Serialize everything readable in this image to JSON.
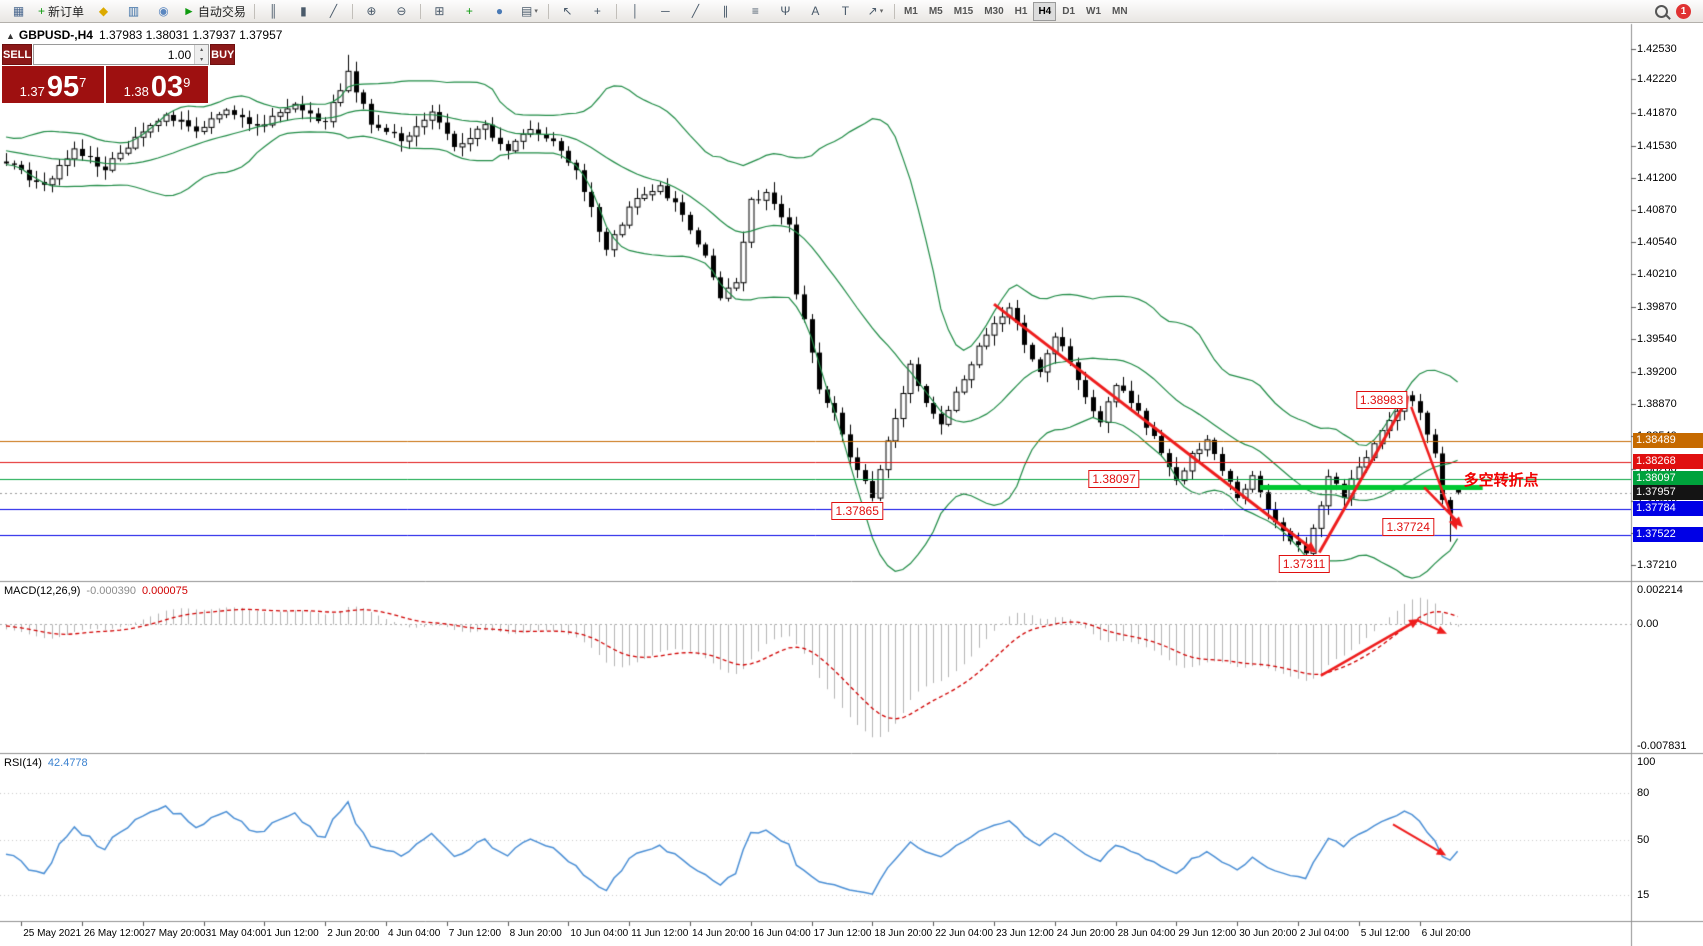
{
  "window": {
    "toggle_glyph": "▲",
    "symbol": "GBPUSD-,H4",
    "ohlc": "1.37983 1.38031 1.37937 1.37957"
  },
  "toolbar": {
    "badge": "1",
    "items": [
      {
        "name": "chart-window-icon",
        "glyph": "▦",
        "color": "#46648c"
      },
      {
        "name": "new-order-button",
        "glyph": "+",
        "color": "#0f9b0f",
        "label": "新订单"
      },
      {
        "name": "metaeditor-icon",
        "glyph": "◆",
        "color": "#dcaa00"
      },
      {
        "name": "market-watch-icon",
        "glyph": "▥",
        "color": "#3a6ea5"
      },
      {
        "name": "navigator-icon",
        "glyph": "◉",
        "color": "#5b87c0"
      },
      {
        "name": "autotrading-button",
        "glyph": "►",
        "color": "#0f9b0f",
        "label": "自动交易"
      },
      {
        "sep": true
      },
      {
        "name": "bar-chart-icon",
        "glyph": "║"
      },
      {
        "name": "candle-chart-icon",
        "glyph": "▮"
      },
      {
        "name": "line-chart-icon",
        "glyph": "╱"
      },
      {
        "sep": true
      },
      {
        "name": "zoom-in-icon",
        "glyph": "⊕"
      },
      {
        "name": "zoom-out-icon",
        "glyph": "⊖"
      },
      {
        "sep": true
      },
      {
        "name": "tile-windows-icon",
        "glyph": "⊞"
      },
      {
        "name": "indicators-icon",
        "glyph": "+",
        "color": "#0f9b0f"
      },
      {
        "name": "cycles-icon",
        "glyph": "●",
        "color": "#4a7ab5"
      },
      {
        "name": "templates-icon",
        "glyph": "▤",
        "dropdown": true
      },
      {
        "sep": true
      },
      {
        "name": "cursor-icon",
        "glyph": "↖"
      },
      {
        "name": "crosshair-icon",
        "glyph": "+"
      },
      {
        "sep": true
      },
      {
        "name": "vertical-line-icon",
        "glyph": "│"
      },
      {
        "name": "horizontal-line-icon",
        "glyph": "─"
      },
      {
        "name": "trendline-icon",
        "glyph": "╱"
      },
      {
        "name": "channel-icon",
        "glyph": "∥"
      },
      {
        "name": "fibonacci-icon",
        "glyph": "≡"
      },
      {
        "name": "pitchfork-icon",
        "glyph": "Ψ"
      },
      {
        "name": "text-icon",
        "glyph": "A"
      },
      {
        "name": "label-icon",
        "glyph": "T"
      },
      {
        "name": "arrows-icon",
        "glyph": "↗",
        "dropdown": true
      },
      {
        "sep": true
      }
    ],
    "timeframes": [
      "M1",
      "M5",
      "M15",
      "M30",
      "H1",
      "H4",
      "D1",
      "W1",
      "MN"
    ],
    "active_timeframe": "H4"
  },
  "trade_panel": {
    "sell_label": "SELL",
    "buy_label": "BUY",
    "volume": "1.00",
    "spin_up": "▴",
    "spin_down": "▾",
    "bid": {
      "prefix": "1.37",
      "big": "95",
      "sup": "7"
    },
    "ask": {
      "prefix": "1.38",
      "big": "03",
      "sup": "9"
    }
  },
  "chart_data": {
    "type": "candlestick",
    "symbol_timeframe": "GBPUSD H4",
    "noise_seed": 7,
    "price_axis": {
      "max": 1.4253,
      "min": 1.3721,
      "ticks": [
        "1.42530",
        "1.42220",
        "1.41870",
        "1.41530",
        "1.41200",
        "1.40870",
        "1.40540",
        "1.40210",
        "1.39870",
        "1.39540",
        "1.39200",
        "1.38870",
        "1.38540",
        "1.38200",
        "1.37870",
        "1.37540",
        "1.37210"
      ]
    },
    "time_labels": [
      "25 May 2021",
      "26 May 12:00",
      "27 May 20:00",
      "31 May 04:00",
      "1 Jun 12:00",
      "2 Jun 20:00",
      "4 Jun 04:00",
      "7 Jun 12:00",
      "8 Jun 20:00",
      "10 Jun 04:00",
      "11 Jun 12:00",
      "14 Jun 20:00",
      "16 Jun 04:00",
      "17 Jun 12:00",
      "18 Jun 20:00",
      "22 Jun 04:00",
      "23 Jun 12:00",
      "24 Jun 20:00",
      "28 Jun 04:00",
      "29 Jun 12:00",
      "30 Jun 20:00",
      "2 Jul 04:00",
      "5 Jul 12:00",
      "6 Jul 20:00"
    ],
    "pre_anchors": [
      [
        -40,
        1.4118
      ],
      [
        -32,
        1.4162
      ],
      [
        -24,
        1.4188
      ],
      [
        -16,
        1.414
      ],
      [
        -8,
        1.4158
      ],
      [
        -1,
        1.4137
      ]
    ],
    "anchors": [
      [
        0,
        1.4135
      ],
      [
        5,
        1.4113
      ],
      [
        9,
        1.415
      ],
      [
        13,
        1.4128
      ],
      [
        17,
        1.4162
      ],
      [
        21,
        1.4185
      ],
      [
        25,
        1.4168
      ],
      [
        29,
        1.419
      ],
      [
        33,
        1.4174
      ],
      [
        38,
        1.4196
      ],
      [
        42,
        1.4178
      ],
      [
        45,
        1.423
      ],
      [
        48,
        1.4175
      ],
      [
        52,
        1.4158
      ],
      [
        56,
        1.4188
      ],
      [
        59,
        1.4152
      ],
      [
        63,
        1.4175
      ],
      [
        66,
        1.4148
      ],
      [
        69,
        1.417
      ],
      [
        72,
        1.4158
      ],
      [
        75,
        1.4128
      ],
      [
        79,
        1.4046
      ],
      [
        82,
        1.409
      ],
      [
        86,
        1.4112
      ],
      [
        89,
        1.4082
      ],
      [
        92,
        1.404
      ],
      [
        94,
        1.3996
      ],
      [
        96,
        1.4012
      ],
      [
        98,
        1.4098
      ],
      [
        100,
        1.4105
      ],
      [
        103,
        1.4072
      ],
      [
        104,
        1.4
      ],
      [
        106,
        1.394
      ],
      [
        107,
        1.3902
      ],
      [
        109,
        1.3878
      ],
      [
        111,
        1.3832
      ],
      [
        114,
        1.379
      ],
      [
        117,
        1.3872
      ],
      [
        119,
        1.3928
      ],
      [
        121,
        1.3888
      ],
      [
        123,
        1.3866
      ],
      [
        126,
        1.3912
      ],
      [
        129,
        1.3958
      ],
      [
        132,
        1.3986
      ],
      [
        134,
        1.3948
      ],
      [
        136,
        1.392
      ],
      [
        138,
        1.3956
      ],
      [
        140,
        1.393
      ],
      [
        142,
        1.3894
      ],
      [
        144,
        1.3868
      ],
      [
        146,
        1.3906
      ],
      [
        148,
        1.3888
      ],
      [
        151,
        1.3854
      ],
      [
        154,
        1.3808
      ],
      [
        156,
        1.3836
      ],
      [
        158,
        1.385
      ],
      [
        160,
        1.3818
      ],
      [
        162,
        1.379
      ],
      [
        164,
        1.3813
      ],
      [
        166,
        1.3778
      ],
      [
        168,
        1.3756
      ],
      [
        171,
        1.3733
      ],
      [
        173,
        1.3782
      ],
      [
        174,
        1.3812
      ],
      [
        176,
        1.379
      ],
      [
        178,
        1.3822
      ],
      [
        180,
        1.3846
      ],
      [
        182,
        1.387
      ],
      [
        184,
        1.3896
      ],
      [
        186,
        1.3878
      ],
      [
        188,
        1.3836
      ],
      [
        189,
        1.3788
      ],
      [
        190,
        1.3774
      ],
      [
        191,
        1.37957
      ]
    ],
    "overrides": {
      "high": [
        [
          45,
          1.4247
        ],
        [
          184,
          1.38983
        ]
      ],
      "low": [
        [
          114,
          1.37865
        ],
        [
          171,
          1.37311
        ],
        [
          190,
          1.3745
        ]
      ],
      "last": [
        1.37983,
        1.38031,
        1.37937,
        1.37957
      ]
    },
    "bollinger": {
      "period": 20,
      "deviation": 2,
      "color": "#1f8b45"
    },
    "hlines": [
      {
        "price": 1.38489,
        "label": "1.38489",
        "color": "#c66a00"
      },
      {
        "price": 1.38268,
        "label": "1.38268",
        "color": "#e01010"
      },
      {
        "price": 1.38097,
        "label": "1.38097",
        "color": "#00a23c"
      },
      {
        "price": 1.37784,
        "label": "1.37784",
        "color": "#0000e6"
      },
      {
        "price": 1.37522,
        "label": "1.37522",
        "color": "#0000e6"
      }
    ],
    "current_price": {
      "value": 1.37957,
      "label": "1.37957",
      "label_bg": "#141414"
    },
    "thick_line": {
      "price": 1.3801,
      "from_idx": 165,
      "to_idx": 194.3,
      "color": "#00c832",
      "width": 5
    },
    "price_labels": [
      {
        "text": "1.38983",
        "idx": 181,
        "price": 1.3891
      },
      {
        "text": "1.38097",
        "idx": 145.8,
        "price": 1.38097
      },
      {
        "text": "1.37865",
        "idx": 112,
        "price": 1.3777
      },
      {
        "text": "1.37724",
        "idx": 184.5,
        "price": 1.376
      },
      {
        "text": "1.37311",
        "idx": 170.8,
        "price": 1.37225
      }
    ],
    "annotation_text": {
      "text": "多空转折点",
      "idx": 191.8,
      "price": 1.38105,
      "color": "#f00000"
    },
    "trend_arrows": [
      {
        "from": [
          130,
          1.399
        ],
        "to": [
          172.5,
          1.37335
        ],
        "w": 3
      },
      {
        "from": [
          172.8,
          1.3734
        ],
        "to": [
          184.6,
          1.38955
        ],
        "w": 3
      },
      {
        "from": [
          184.9,
          1.3884
        ],
        "to": [
          190.9,
          1.3757
        ],
        "w": 2.5
      },
      {
        "from": [
          186.6,
          1.3801
        ],
        "to": [
          191.7,
          1.376
        ],
        "w": 2.5
      }
    ],
    "macd": {
      "name": "MACD(12,26,9)",
      "main": "-0.000390",
      "signal": "0.000075",
      "scale_top": "0.002214",
      "scale_zero": "0.00",
      "scale_bottom": "-0.007831",
      "hist_color": "#b4b4b4",
      "signal_color": "#d00000",
      "arrows": [
        {
          "from": [
            173,
            -0.0033
          ],
          "to": [
            186,
            0.00035
          ],
          "w": 2.5
        },
        {
          "from": [
            185.6,
            0.00028
          ],
          "to": [
            189.6,
            -0.0006
          ],
          "w": 2
        }
      ]
    },
    "rsi": {
      "name": "RSI(14)",
      "value": "42.4778",
      "levels": [
        "100",
        "80",
        "50",
        "15"
      ],
      "line_color": "#4b8fd5",
      "arrows": [
        {
          "from": [
            182.5,
            60
          ],
          "to": [
            189.5,
            40
          ],
          "w": 2
        }
      ]
    }
  }
}
